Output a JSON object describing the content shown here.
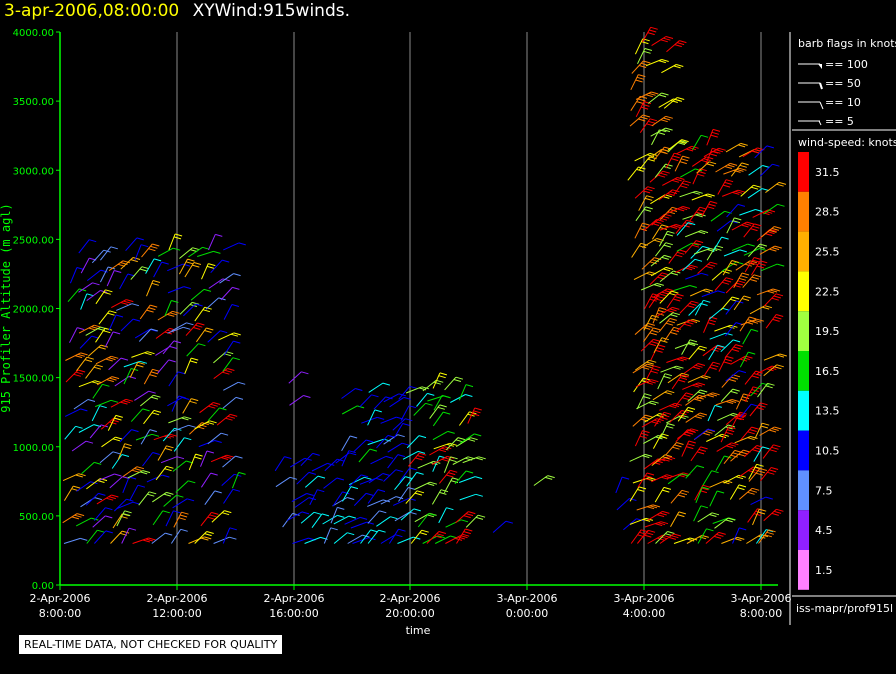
{
  "header": {
    "datetime": "3-apr-2006,08:00:00",
    "title": "XYWind:915winds."
  },
  "footer_note": "REAL-TIME DATA, NOT CHECKED FOR QUALITY",
  "chart_data": {
    "type": "wind-barb time-height plot",
    "title": "XYWind:915winds.",
    "xlabel": "time",
    "ylabel": "915 Profiler Altitude (m agl)",
    "ylim": [
      0,
      4000
    ],
    "yticks": [
      "0.00",
      "500.00",
      "1000.00",
      "1500.00",
      "2000.00",
      "2500.00",
      "3000.00",
      "3500.00",
      "4000.00"
    ],
    "xticks": [
      {
        "line1": "2-Apr-2006",
        "line2": "8:00:00"
      },
      {
        "line1": "2-Apr-2006",
        "line2": "12:00:00"
      },
      {
        "line1": "2-Apr-2006",
        "line2": "16:00:00"
      },
      {
        "line1": "2-Apr-2006",
        "line2": "20:00:00"
      },
      {
        "line1": "3-Apr-2006",
        "line2": "0:00:00"
      },
      {
        "line1": "3-Apr-2006",
        "line2": "4:00:00"
      },
      {
        "line1": "3-Apr-2006",
        "line2": "8:00:00"
      }
    ],
    "grid": "vertical",
    "barb_legend": {
      "title": "barb flags in knots",
      "entries": [
        "== 100",
        "== 50",
        "== 10",
        "== 5"
      ]
    },
    "speed_legend": {
      "title": "wind-speed: knots",
      "entries": [
        {
          "label": "31.5",
          "color": "#ff0000"
        },
        {
          "label": "28.5",
          "color": "#ff8000"
        },
        {
          "label": "25.5",
          "color": "#ffb000"
        },
        {
          "label": "22.5",
          "color": "#ffff00"
        },
        {
          "label": "19.5",
          "color": "#a0ff40"
        },
        {
          "label": "16.5",
          "color": "#00e000"
        },
        {
          "label": "13.5",
          "color": "#00ffff"
        },
        {
          "label": "10.5",
          "color": "#0000ff"
        },
        {
          "label": "7.5",
          "color": "#6090ff"
        },
        {
          "label": "4.5",
          "color": "#9020ff"
        },
        {
          "label": "1.5",
          "color": "#ff80ff"
        }
      ]
    },
    "source_label": "iss-mapr/prof915l"
  }
}
